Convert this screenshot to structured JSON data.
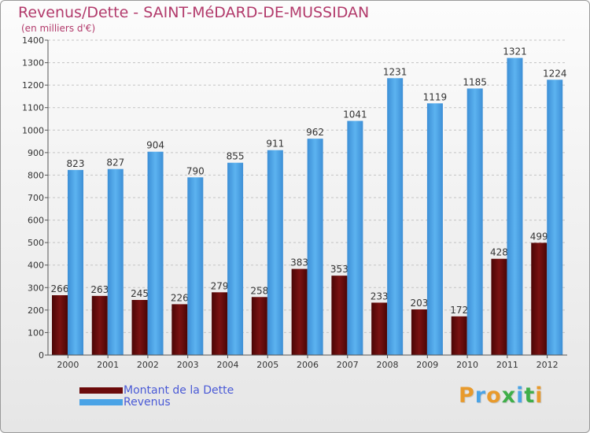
{
  "header": {
    "title": "Revenus/Dette - SAINT-MéDARD-DE-MUSSIDAN",
    "subtitle": "(en milliers d'€)"
  },
  "legend": {
    "items": [
      {
        "label": "Montant de la Dette",
        "color": "#6b0a0a"
      },
      {
        "label": "Revenus",
        "color": "#4aa3e6"
      }
    ]
  },
  "logo": {
    "text": "Proxiti",
    "colors": [
      "#e89a2c",
      "#4aa3e6",
      "#e89a2c",
      "#3fae49",
      "#4aa3e6",
      "#3fae49",
      "#e89a2c"
    ]
  },
  "chart_data": {
    "type": "bar",
    "title": "Revenus/Dette - SAINT-MéDARD-DE-MUSSIDAN",
    "ylabel": "(en milliers d'€)",
    "categories": [
      "2000",
      "2001",
      "2002",
      "2003",
      "2004",
      "2005",
      "2006",
      "2007",
      "2008",
      "2009",
      "2010",
      "2011",
      "2012"
    ],
    "series": [
      {
        "name": "Montant de la Dette",
        "color": "#6b0a0a",
        "values": [
          266,
          263,
          245,
          226,
          279,
          258,
          383,
          353,
          233,
          203,
          172,
          428,
          499
        ]
      },
      {
        "name": "Revenus",
        "color": "#4aa3e6",
        "values": [
          823,
          827,
          904,
          790,
          855,
          911,
          962,
          1041,
          1231,
          1119,
          1185,
          1321,
          1224
        ]
      }
    ],
    "ylim": [
      0,
      1400
    ],
    "yticks": [
      0,
      100,
      200,
      300,
      400,
      500,
      600,
      700,
      800,
      900,
      1000,
      1100,
      1200,
      1300,
      1400
    ],
    "grid": true,
    "legend_position": "bottom-left"
  }
}
